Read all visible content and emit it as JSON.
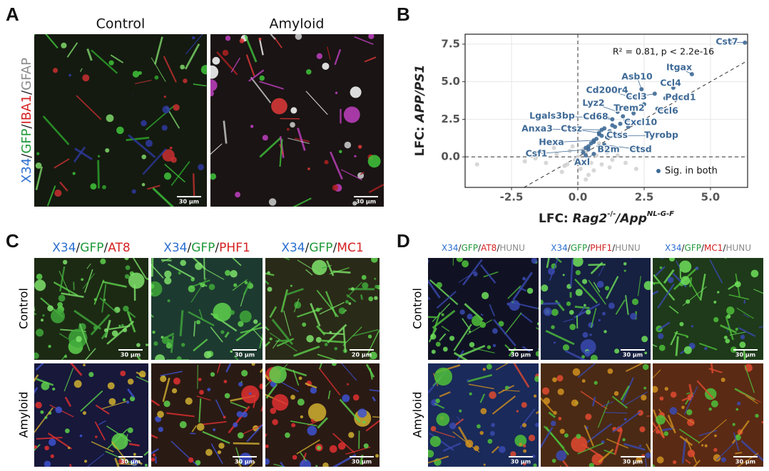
{
  "panel_a": {
    "letter": "A",
    "columns": [
      "Control",
      "Amyloid"
    ],
    "stain": [
      {
        "text": "X34",
        "color": "#2b6fd0"
      },
      {
        "text": "/",
        "color": "#222222"
      },
      {
        "text": "GFP",
        "color": "#1f9a3a"
      },
      {
        "text": "/",
        "color": "#222222"
      },
      {
        "text": "IBA1",
        "color": "#d42020"
      },
      {
        "text": "/",
        "color": "#222222"
      },
      {
        "text": "GFAP",
        "color": "#8a8a8a"
      }
    ],
    "scale_bars": [
      "30 μm",
      "30 μm"
    ]
  },
  "panel_b": {
    "letter": "B"
  },
  "chart_data": {
    "type": "scatter",
    "annotation": "R² = 0.81, p < 2.2e-16",
    "xlabel": [
      "LFC: ",
      "Rag2",
      "-/-",
      "/App",
      "NL-G-F"
    ],
    "ylabel": [
      "LFC: ",
      "APP/PS1"
    ],
    "xlim": [
      -4.25,
      6.4
    ],
    "ylim": [
      -2.03,
      8.16
    ],
    "xticks": [
      -2.5,
      {
        "value": 0,
        "label": "0.0"
      },
      2.5,
      {
        "value": 5,
        "label": "5.0"
      }
    ],
    "yticks": [
      {
        "value": 0,
        "label": "0.0"
      },
      2.5,
      {
        "value": 5,
        "label": "5.0"
      },
      7.5
    ],
    "grid": true,
    "identity_line": true,
    "legend": "lower right",
    "series": [
      {
        "color": "#d3d3d3",
        "x": [
          -1.2,
          -0.8,
          -0.5,
          -0.3,
          -0.1,
          0.1,
          0.3,
          0.5,
          0.7,
          0.9,
          1.1,
          1.3,
          -0.6,
          -0.2,
          0.2,
          0.6,
          1.0,
          1.5,
          -1.6,
          -2.0,
          0.4,
          0.8,
          1.2,
          -0.4,
          0.0,
          1.8,
          -3.8,
          2.2,
          -0.9,
          0.3
        ],
        "y": [
          -0.4,
          0.2,
          -0.6,
          0.4,
          -0.2,
          -0.8,
          0.3,
          -0.4,
          0.1,
          -0.5,
          0.3,
          -0.2,
          -1.0,
          0.7,
          0.5,
          -0.9,
          0.6,
          0.1,
          -0.1,
          -0.3,
          -1.2,
          0.9,
          -0.7,
          -0.5,
          0.0,
          -0.4,
          -0.5,
          -0.8,
          0.6,
          -1.5
        ]
      },
      {
        "name": "Sig. in both",
        "color": "#3f6a96",
        "x": [
          6.3,
          4.3,
          2.4,
          3.6,
          2.2,
          2.9,
          3.3,
          1.5,
          2.0,
          3.0,
          1.1,
          1.3,
          1.8,
          0.9,
          0.8,
          1.1,
          1.5,
          0.6,
          1.0,
          0.8,
          0.4,
          0.6,
          0.2,
          0.3,
          0.5,
          0.7,
          0.9,
          1.2,
          1.4,
          1.6,
          0.4,
          0.6,
          1.0,
          1.3,
          1.7,
          2.1,
          0.3,
          0.8,
          1.9,
          2.5
        ],
        "y": [
          7.6,
          5.5,
          4.5,
          4.6,
          3.9,
          4.2,
          3.9,
          3.0,
          3.3,
          3.2,
          2.6,
          2.5,
          2.4,
          1.8,
          1.6,
          1.3,
          1.4,
          1.1,
          0.8,
          0.7,
          0.5,
          0.2,
          0.3,
          0.6,
          0.9,
          1.2,
          1.4,
          1.7,
          2.0,
          2.2,
          0.7,
          1.0,
          1.9,
          2.1,
          2.7,
          2.9,
          0.1,
          1.5,
          2.0,
          3.5
        ],
        "labels": [
          "Cst7",
          "Itgax",
          "Asb10",
          "Ccl4",
          "Cd200r4",
          "Ccl3",
          "Pdcd1",
          "Lyz2",
          "Trem2",
          "Ccl6",
          "Lgals3bp",
          "Cd68",
          "Cxcl10",
          "Anxa3",
          "Ctsz",
          "Ctss",
          "Tyrobp",
          "Hexa",
          "Ctsd",
          "B2m",
          "Csf1",
          "Axl",
          null,
          null,
          null,
          null,
          null,
          null,
          null,
          null,
          null,
          null,
          null,
          null,
          null,
          null,
          null,
          null,
          null,
          null
        ]
      }
    ]
  },
  "panel_c": {
    "letter": "C",
    "rows": [
      "Control",
      "Amyloid"
    ],
    "columns": [
      [
        {
          "text": "X34",
          "color": "#2b6fd0"
        },
        {
          "text": "/",
          "color": "#222222"
        },
        {
          "text": "GFP",
          "color": "#1f9a3a"
        },
        {
          "text": "/",
          "color": "#222222"
        },
        {
          "text": "AT8",
          "color": "#d42020"
        }
      ],
      [
        {
          "text": "X34",
          "color": "#2b6fd0"
        },
        {
          "text": "/",
          "color": "#222222"
        },
        {
          "text": "GFP",
          "color": "#1f9a3a"
        },
        {
          "text": "/",
          "color": "#222222"
        },
        {
          "text": "PHF1",
          "color": "#d42020"
        }
      ],
      [
        {
          "text": "X34",
          "color": "#2b6fd0"
        },
        {
          "text": "/",
          "color": "#222222"
        },
        {
          "text": "GFP",
          "color": "#1f9a3a"
        },
        {
          "text": "/",
          "color": "#222222"
        },
        {
          "text": "MC1",
          "color": "#d42020"
        }
      ]
    ],
    "scale_bars": [
      [
        "30 μm",
        "30 μm",
        "20 μm"
      ],
      [
        "30 μm",
        "30 μm",
        "30 μm"
      ]
    ]
  },
  "panel_d": {
    "letter": "D",
    "rows": [
      "Control",
      "Amyloid"
    ],
    "columns": [
      [
        {
          "text": "X34",
          "color": "#2b6fd0"
        },
        {
          "text": "/",
          "color": "#222222"
        },
        {
          "text": "GFP",
          "color": "#1f9a3a"
        },
        {
          "text": "/",
          "color": "#222222"
        },
        {
          "text": "AT8",
          "color": "#d42020"
        },
        {
          "text": "/",
          "color": "#222222"
        },
        {
          "text": "HUNU",
          "color": "#8a8a8a"
        }
      ],
      [
        {
          "text": "X34",
          "color": "#2b6fd0"
        },
        {
          "text": "/",
          "color": "#222222"
        },
        {
          "text": "GFP",
          "color": "#1f9a3a"
        },
        {
          "text": "/",
          "color": "#222222"
        },
        {
          "text": "PHF1",
          "color": "#d42020"
        },
        {
          "text": "/",
          "color": "#222222"
        },
        {
          "text": "HUNU",
          "color": "#8a8a8a"
        }
      ],
      [
        {
          "text": "X34",
          "color": "#2b6fd0"
        },
        {
          "text": "/",
          "color": "#222222"
        },
        {
          "text": "GFP",
          "color": "#1f9a3a"
        },
        {
          "text": "/",
          "color": "#222222"
        },
        {
          "text": "MC1",
          "color": "#d42020"
        },
        {
          "text": "/",
          "color": "#222222"
        },
        {
          "text": "HUNU",
          "color": "#8a8a8a"
        }
      ]
    ],
    "scale_bars": [
      [
        "30 μm",
        "30 μm",
        "30 μm"
      ],
      [
        "30 μm",
        "30 μm",
        "30 μm"
      ]
    ]
  }
}
